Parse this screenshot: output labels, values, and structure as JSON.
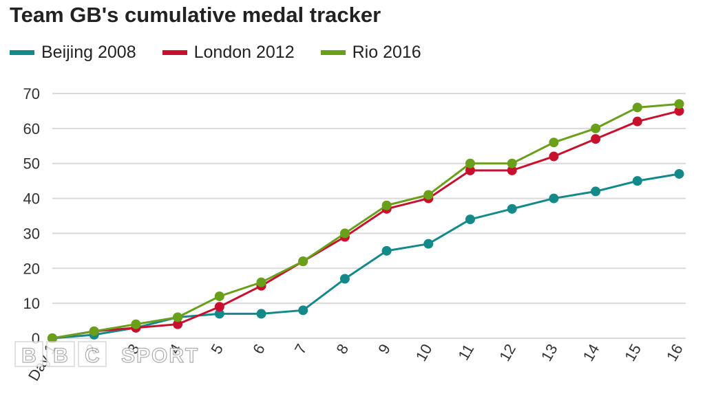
{
  "chart_data": {
    "type": "line",
    "title": "Team GB's cumulative medal tracker",
    "x": [
      "Day 1",
      "2",
      "3",
      "4",
      "5",
      "6",
      "7",
      "8",
      "9",
      "10",
      "11",
      "12",
      "13",
      "14",
      "15",
      "16"
    ],
    "ylim": [
      0,
      70
    ],
    "yticks": [
      0,
      10,
      20,
      30,
      40,
      50,
      60,
      70
    ],
    "grid": "horizontal",
    "legend_position": "top-left",
    "series": [
      {
        "name": "Beijing 2008",
        "color": "#14898a",
        "values": [
          0,
          1,
          3,
          6,
          7,
          7,
          8,
          17,
          25,
          27,
          34,
          37,
          40,
          42,
          45,
          47
        ]
      },
      {
        "name": "London 2012",
        "color": "#c8102e",
        "values": [
          0,
          2,
          3,
          4,
          9,
          15,
          22,
          29,
          37,
          40,
          48,
          48,
          52,
          57,
          62,
          65
        ]
      },
      {
        "name": "Rio 2016",
        "color": "#6a9f1a",
        "values": [
          0,
          2,
          4,
          6,
          12,
          16,
          22,
          30,
          38,
          41,
          50,
          50,
          56,
          60,
          66,
          67
        ]
      }
    ]
  },
  "logo": {
    "parts": [
      "B",
      "B",
      "C"
    ],
    "word": "SPORT"
  }
}
